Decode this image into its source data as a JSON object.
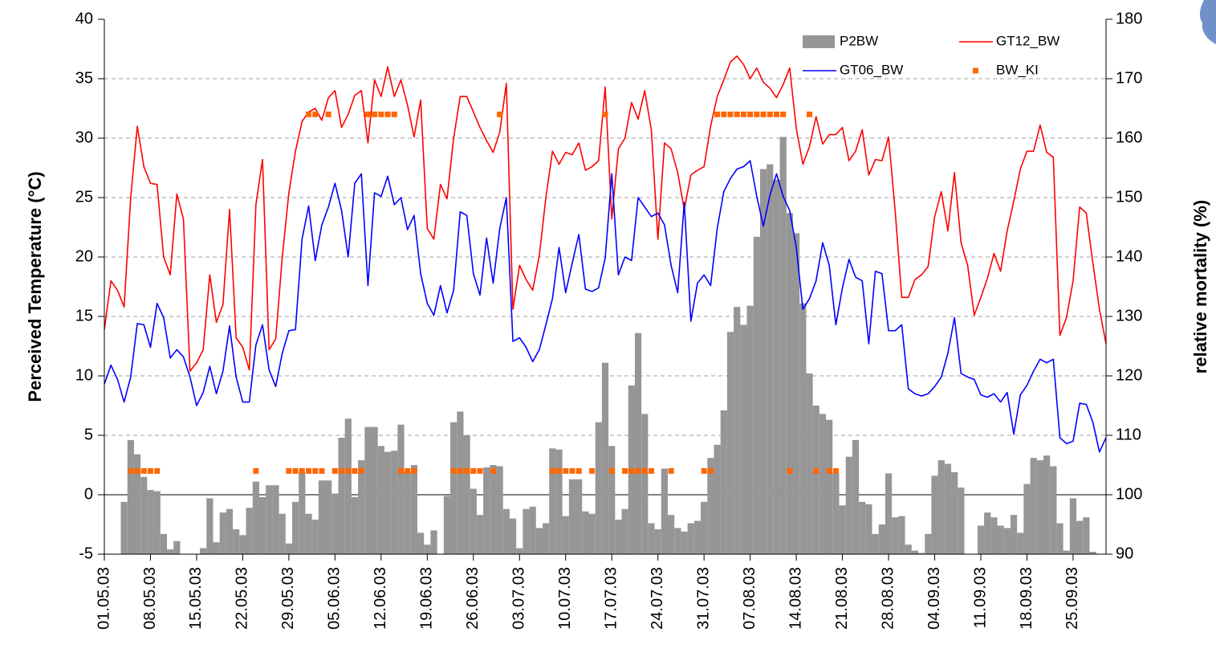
{
  "chart_data": {
    "type": "combo",
    "y_label": "Perceived Temperature (°C)",
    "y2_label": "relative mortality (%)",
    "ylim": [
      -5,
      40
    ],
    "yticks": [
      -5,
      0,
      5,
      10,
      15,
      20,
      25,
      30,
      35,
      40
    ],
    "y2lim": [
      90,
      180
    ],
    "y2ticks": [
      90,
      100,
      110,
      120,
      130,
      140,
      150,
      160,
      170,
      180
    ],
    "grid": true,
    "legend": "upper right",
    "categories": [
      "01.05.03",
      null,
      null,
      null,
      null,
      null,
      null,
      "08.05.03",
      null,
      null,
      null,
      null,
      null,
      null,
      "15.05.03",
      null,
      null,
      null,
      null,
      null,
      null,
      "22.05.03",
      null,
      null,
      null,
      null,
      null,
      null,
      "29.05.03",
      null,
      null,
      null,
      null,
      null,
      null,
      "05.06.03",
      null,
      null,
      null,
      null,
      null,
      null,
      "12.06.03",
      null,
      null,
      null,
      null,
      null,
      null,
      "19.06.03",
      null,
      null,
      null,
      null,
      null,
      null,
      "26.06.03",
      null,
      null,
      null,
      null,
      null,
      null,
      "03.07.03",
      null,
      null,
      null,
      null,
      null,
      null,
      "10.07.03",
      null,
      null,
      null,
      null,
      null,
      null,
      "17.07.03",
      null,
      null,
      null,
      null,
      null,
      null,
      "24.07.03",
      null,
      null,
      null,
      null,
      null,
      null,
      "31.07.03",
      null,
      null,
      null,
      null,
      null,
      null,
      "07.08.03",
      null,
      null,
      null,
      null,
      null,
      null,
      "14.08.03",
      null,
      null,
      null,
      null,
      null,
      null,
      "21.08.03",
      null,
      null,
      null,
      null,
      null,
      null,
      "28.08.03",
      null,
      null,
      null,
      null,
      null,
      null,
      "04.09.03",
      null,
      null,
      null,
      null,
      null,
      null,
      "11.09.03",
      null,
      null,
      null,
      null,
      null,
      null,
      "18.09.03",
      null,
      null,
      null,
      null,
      null,
      null,
      "25.09.03",
      null,
      null,
      null,
      null,
      null
    ],
    "series": [
      {
        "name": "P2BW",
        "type": "bar",
        "axis": "y2",
        "color": "#969696",
        "values": [
          90,
          90,
          90,
          98.8,
          109.2,
          106.8,
          103,
          100.8,
          100.6,
          93.4,
          90.8,
          92.2,
          90,
          90,
          90,
          91,
          99.4,
          92,
          97,
          97.6,
          94.2,
          93.2,
          97.8,
          102.2,
          99.6,
          101.6,
          101.6,
          96.8,
          91.8,
          98.8,
          103.8,
          96.8,
          95.8,
          102.4,
          102.4,
          100.2,
          109.6,
          112.8,
          99.6,
          105.8,
          111.4,
          111.4,
          108.2,
          107.2,
          107.4,
          111.8,
          103.8,
          105,
          93.6,
          91.6,
          94,
          90,
          99.8,
          112.2,
          114,
          110,
          101,
          96.6,
          104.6,
          105,
          104.8,
          97.6,
          96,
          91,
          97.6,
          98,
          94.4,
          95.2,
          107.8,
          107.6,
          96.4,
          102.6,
          102.6,
          97.2,
          96.8,
          112.2,
          122.2,
          108.2,
          95.8,
          97.6,
          118.4,
          127.2,
          113.6,
          95.2,
          94.2,
          104.4,
          96.6,
          94.4,
          93.8,
          95.2,
          95.6,
          98.8,
          106.2,
          108.4,
          114.2,
          127.4,
          131.6,
          128.6,
          131.8,
          143.4,
          154.8,
          155.6,
          153,
          160.2,
          147.4,
          144,
          132.2,
          120.4,
          115,
          113.6,
          112.6,
          103.6,
          98.2,
          106.4,
          109.2,
          98.8,
          98.4,
          93.4,
          95,
          103.6,
          96.2,
          96.4,
          91.6,
          90.6,
          90.2,
          93.4,
          103.2,
          105.8,
          105.2,
          103.8,
          101.2,
          90,
          90,
          94.8,
          97,
          96.2,
          94.8,
          94.4,
          96.6,
          93.6,
          101.8,
          106.2,
          105.8,
          106.6,
          104.8,
          95.2,
          90.6,
          99.4,
          95.6,
          96.2,
          90.4,
          90,
          90
        ]
      },
      {
        "name": "GT12_BW",
        "type": "line",
        "color": "#ff0000",
        "values": [
          13.9,
          18,
          17.2,
          15.8,
          25,
          31,
          27.6,
          26.2,
          26.1,
          20,
          18.5,
          25.3,
          23.2,
          10.4,
          11.1,
          12.2,
          18.5,
          14.5,
          16,
          24,
          13.2,
          12.4,
          10.5,
          24.4,
          28.2,
          12.2,
          13.1,
          20,
          25.4,
          28.9,
          31.4,
          32.2,
          32.5,
          31.5,
          33.4,
          34,
          30.9,
          32,
          33.6,
          34,
          29.6,
          34.9,
          33.5,
          36,
          33.5,
          34.9,
          32.8,
          30.1,
          33.2,
          22.4,
          21.5,
          26.1,
          24.9,
          30,
          33.5,
          33.5,
          32.2,
          30.9,
          29.8,
          28.8,
          30.5,
          34.6,
          15.6,
          19.3,
          18.1,
          17.2,
          20.1,
          25,
          28.9,
          27.8,
          28.8,
          28.6,
          29.6,
          27.3,
          27.6,
          28.1,
          34.3,
          23.2,
          29.1,
          30,
          33,
          31.6,
          34,
          30.7,
          21.5,
          29.6,
          29.1,
          27.1,
          24,
          26.9,
          27.3,
          27.6,
          31,
          33.5,
          34.9,
          36.4,
          36.9,
          36.2,
          35,
          35.9,
          34.7,
          34.2,
          33.4,
          34.5,
          35.9,
          30.8,
          27.8,
          29.3,
          31.8,
          29.5,
          30.3,
          30.3,
          30.9,
          28.1,
          28.9,
          30.7,
          26.9,
          28.2,
          28.1,
          30.1,
          23.9,
          16.6,
          16.6,
          18.1,
          18.5,
          19.2,
          23.4,
          25.5,
          22.2,
          27.1,
          21.2,
          19.3,
          15.1,
          16.6,
          18.2,
          20.3,
          18.8,
          22.2,
          24.7,
          27.4,
          28.9,
          28.9,
          31.1,
          28.8,
          28.4,
          13.4,
          14.9,
          18,
          24.2,
          23.7,
          19.5,
          15.6,
          12.7
        ]
      },
      {
        "name": "GT06_BW",
        "type": "line",
        "color": "#0000ff",
        "values": [
          9.3,
          10.9,
          9.7,
          7.8,
          9.9,
          14.4,
          14.3,
          12.4,
          16.1,
          14.9,
          11.5,
          12.2,
          11.6,
          9.9,
          7.5,
          8.6,
          10.8,
          8.5,
          10.4,
          14.2,
          9.9,
          7.8,
          7.8,
          12.6,
          14.3,
          10.5,
          9.1,
          11.9,
          13.8,
          13.9,
          21.5,
          24.3,
          19.7,
          22.7,
          24.2,
          26.2,
          23.9,
          20,
          26.2,
          27,
          17.6,
          25.4,
          25.1,
          26.8,
          24.4,
          25,
          22.3,
          23.5,
          18.6,
          16.1,
          15.1,
          17.6,
          15.3,
          17.2,
          23.8,
          23.5,
          18.6,
          16.8,
          21.6,
          17.8,
          22.4,
          25,
          12.9,
          13.2,
          12.4,
          11.2,
          12.2,
          14.3,
          16.5,
          20.8,
          17,
          19.5,
          21.9,
          17.3,
          17.1,
          17.4,
          19.9,
          27,
          18.5,
          20,
          19.7,
          25,
          24.2,
          23.4,
          23.7,
          22.7,
          19.3,
          17,
          24.6,
          14.6,
          17.8,
          18.5,
          17.6,
          22.4,
          25.5,
          26.6,
          27.4,
          27.6,
          28.1,
          25.1,
          22.6,
          25.2,
          27,
          25.1,
          23.9,
          20.8,
          15.6,
          16.5,
          18,
          21.2,
          19.3,
          14.3,
          17.4,
          19.8,
          18.3,
          18,
          12.7,
          18.8,
          18.6,
          13.8,
          13.8,
          14.3,
          8.9,
          8.5,
          8.3,
          8.5,
          9.1,
          9.9,
          11.9,
          14.9,
          10.2,
          9.9,
          9.7,
          8.4,
          8.2,
          8.5,
          7.8,
          8.6,
          5.1,
          8.4,
          9.2,
          10.4,
          11.4,
          11.1,
          11.4,
          4.8,
          4.3,
          4.5,
          7.7,
          7.6,
          6.1,
          3.6,
          4.8
        ]
      },
      {
        "name": "BW_KI",
        "type": "scatter",
        "color": "#ff6600",
        "values": [
          null,
          null,
          null,
          null,
          2,
          2,
          2,
          2,
          2,
          null,
          null,
          null,
          null,
          null,
          null,
          null,
          null,
          null,
          null,
          null,
          null,
          null,
          null,
          2,
          null,
          null,
          null,
          null,
          2,
          2,
          2,
          2,
          2,
          2,
          null,
          2,
          2,
          2,
          2,
          2,
          null,
          null,
          null,
          null,
          null,
          2,
          2,
          2,
          null,
          null,
          null,
          null,
          null,
          2,
          2,
          2,
          2,
          2,
          null,
          2,
          null,
          null,
          null,
          null,
          null,
          null,
          null,
          null,
          2,
          2,
          2,
          2,
          2,
          null,
          2,
          null,
          null,
          2,
          null,
          2,
          2,
          2,
          2,
          2,
          null,
          null,
          2,
          null,
          null,
          null,
          null,
          2,
          2,
          null,
          null,
          null,
          null,
          null,
          null,
          null,
          null,
          null,
          null,
          null,
          2,
          null,
          null,
          null,
          2,
          null,
          2,
          2,
          null,
          null,
          null,
          null,
          null,
          null,
          null,
          null,
          null,
          null,
          null,
          null,
          null,
          null,
          null,
          null,
          null,
          null,
          null,
          null,
          null,
          null,
          null,
          null,
          null,
          null,
          null,
          null,
          null,
          null,
          null,
          null,
          null,
          null,
          null,
          null,
          null,
          null,
          null,
          null,
          null
        ]
      },
      {
        "type": "scatter",
        "color": "#ff6600",
        "values": [
          null,
          null,
          null,
          null,
          null,
          null,
          null,
          null,
          null,
          null,
          null,
          null,
          null,
          null,
          null,
          null,
          null,
          null,
          null,
          null,
          null,
          null,
          null,
          null,
          null,
          null,
          null,
          null,
          null,
          null,
          null,
          32,
          32,
          null,
          32,
          null,
          null,
          null,
          null,
          null,
          32,
          32,
          32,
          32,
          32,
          null,
          null,
          null,
          null,
          null,
          null,
          null,
          null,
          null,
          null,
          null,
          null,
          null,
          null,
          null,
          32,
          null,
          null,
          null,
          null,
          null,
          null,
          null,
          null,
          null,
          null,
          null,
          null,
          null,
          null,
          null,
          32,
          null,
          null,
          null,
          null,
          null,
          null,
          null,
          null,
          null,
          null,
          null,
          null,
          null,
          null,
          null,
          null,
          32,
          32,
          32,
          32,
          32,
          32,
          32,
          32,
          32,
          32,
          32,
          null,
          null,
          null,
          32,
          null,
          null,
          null,
          null,
          null,
          null,
          null,
          null,
          null,
          null,
          null,
          null,
          null,
          null,
          null,
          null,
          null,
          null,
          null,
          null,
          null,
          null,
          null,
          null,
          null,
          null,
          null,
          null,
          null,
          null,
          null,
          null,
          null,
          null,
          null,
          null,
          null,
          null,
          null,
          null,
          null,
          null,
          null,
          null,
          null
        ]
      }
    ]
  }
}
